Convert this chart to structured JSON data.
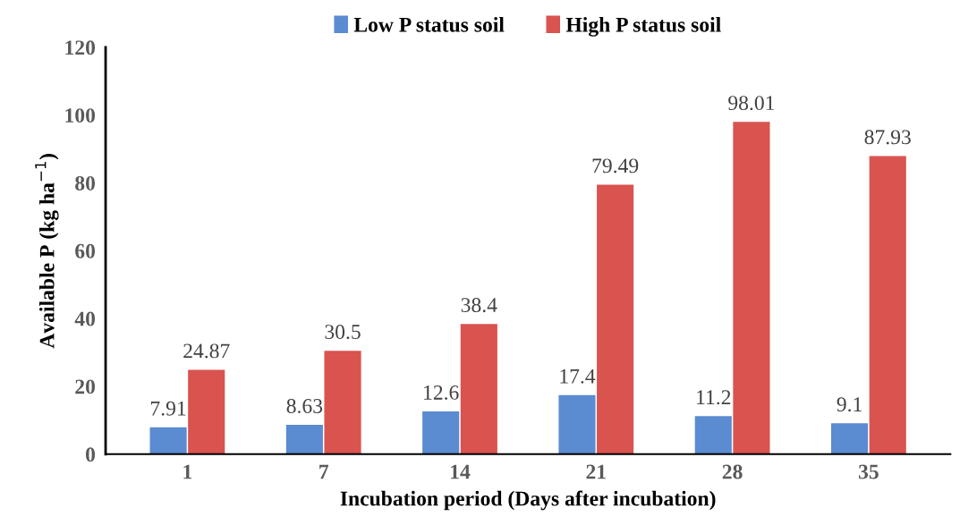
{
  "chart_data": {
    "type": "bar",
    "xlabel": "Incubation period (Days after incubation)",
    "ylabel": "Available P (kg ha$^{−1}$)",
    "categories": [
      "1",
      "7",
      "14",
      "21",
      "28",
      "35"
    ],
    "series": [
      {
        "name": "Low P status soil",
        "color": "#5b8bd0",
        "values": [
          7.91,
          8.63,
          12.6,
          17.4,
          11.2,
          9.1
        ]
      },
      {
        "name": "High P status soil",
        "color": "#d9534f",
        "values": [
          24.87,
          30.5,
          38.4,
          79.49,
          98.01,
          87.93
        ]
      }
    ],
    "ylim": [
      0,
      120
    ],
    "yticks": [
      0,
      20,
      40,
      60,
      80,
      100,
      120
    ],
    "grid": false,
    "legend": "top",
    "data_labels": true
  }
}
